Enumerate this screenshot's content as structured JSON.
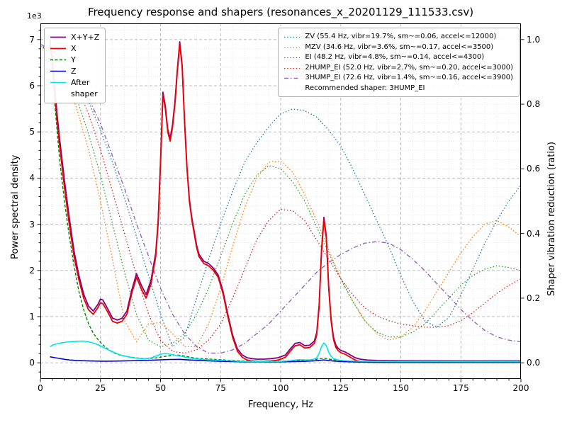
{
  "title": "Frequency response and shapers (resonances_x_20201129_111533.csv)",
  "axes": {
    "x": {
      "label": "Frequency, Hz",
      "min": 0,
      "max": 200,
      "tick_labels": [
        "0",
        "25",
        "50",
        "75",
        "100",
        "125",
        "150",
        "175",
        "200"
      ],
      "minor_step": 5
    },
    "y_left": {
      "label": "Power spectral density",
      "offset_text": "1e3",
      "min": 0,
      "max": 7000,
      "tick_labels": [
        "0",
        "1",
        "2",
        "3",
        "4",
        "5",
        "6",
        "7"
      ],
      "minor_step": 200
    },
    "y_right": {
      "label": "Shaper vibration reduction (ratio)",
      "min": 0,
      "max": 1,
      "tick_labels": [
        "0.0",
        "0.2",
        "0.4",
        "0.6",
        "0.8",
        "1.0"
      ]
    }
  },
  "chart_data": {
    "type": "line",
    "title": "Frequency response and shapers (resonances_x_20201129_111533.csv)",
    "xlabel": "Frequency, Hz",
    "ylabel_left": "Power spectral density",
    "ylabel_right": "Shaper vibration reduction (ratio)",
    "x_range": [
      0,
      200
    ],
    "y_left_range": [
      0,
      7000
    ],
    "y_right_range": [
      0,
      1.0
    ],
    "grid": "major+minor",
    "recommended_label": "Recommended shaper: 3HUMP_EI",
    "psd_series": [
      {
        "name": "psd_xyz",
        "label": "X+Y+Z",
        "color": "#800080",
        "style": "solid",
        "width": 1.8,
        "x": [
          4,
          5,
          6,
          7,
          8,
          10,
          12,
          14,
          16,
          18,
          20,
          22,
          24,
          25,
          26,
          28,
          30,
          32,
          34,
          36,
          38,
          40,
          42,
          44,
          46,
          48,
          49,
          50,
          51,
          52,
          53,
          54,
          55,
          56,
          57,
          58,
          59,
          60,
          61,
          62,
          63,
          64,
          65,
          66,
          68,
          70,
          72,
          74,
          76,
          78,
          80,
          82,
          84,
          86,
          88,
          90,
          93,
          96,
          99,
          102,
          104,
          106,
          108,
          110,
          112,
          114,
          115,
          116,
          117,
          118,
          119,
          120,
          121,
          122,
          123,
          124,
          125,
          127,
          129,
          131,
          133,
          136,
          140,
          150,
          160,
          180,
          200
        ],
        "y": [
          7000,
          6600,
          5950,
          5350,
          4850,
          3950,
          3150,
          2420,
          1900,
          1490,
          1230,
          1120,
          1270,
          1380,
          1360,
          1170,
          970,
          925,
          965,
          1120,
          1570,
          1930,
          1680,
          1480,
          1780,
          2380,
          3080,
          4380,
          5860,
          5560,
          5060,
          4860,
          5160,
          5660,
          6360,
          6950,
          6450,
          5250,
          4250,
          3550,
          3150,
          2850,
          2550,
          2350,
          2200,
          2150,
          2050,
          1900,
          1550,
          1050,
          600,
          300,
          170,
          110,
          90,
          80,
          80,
          90,
          110,
          170,
          300,
          420,
          440,
          370,
          380,
          470,
          650,
          1250,
          2450,
          3150,
          2750,
          1650,
          950,
          550,
          380,
          310,
          270,
          230,
          170,
          110,
          80,
          60,
          50,
          45,
          42,
          40,
          40
        ]
      },
      {
        "name": "psd_x",
        "label": "X",
        "color": "#ee0000",
        "style": "solid",
        "width": 1.8,
        "x": [
          4,
          5,
          6,
          7,
          8,
          10,
          12,
          14,
          16,
          18,
          20,
          22,
          24,
          25,
          26,
          28,
          30,
          32,
          34,
          36,
          38,
          40,
          42,
          44,
          46,
          48,
          49,
          50,
          51,
          52,
          53,
          54,
          55,
          56,
          57,
          58,
          59,
          60,
          61,
          62,
          63,
          64,
          65,
          66,
          68,
          70,
          72,
          74,
          76,
          78,
          80,
          82,
          84,
          86,
          88,
          90,
          93,
          96,
          99,
          102,
          104,
          106,
          108,
          110,
          112,
          114,
          115,
          116,
          117,
          118,
          119,
          120,
          121,
          122,
          123,
          124,
          125,
          127,
          129,
          131,
          133,
          136,
          140,
          150,
          160,
          180,
          200
        ],
        "y": [
          6900,
          6500,
          5800,
          5200,
          4700,
          3800,
          3000,
          2300,
          1800,
          1400,
          1150,
          1050,
          1200,
          1300,
          1280,
          1100,
          900,
          860,
          900,
          1050,
          1500,
          1850,
          1600,
          1400,
          1700,
          2300,
          3000,
          4300,
          5800,
          5500,
          5000,
          4800,
          5100,
          5600,
          6300,
          6900,
          6400,
          5200,
          4200,
          3500,
          3100,
          2800,
          2500,
          2300,
          2150,
          2100,
          2000,
          1850,
          1500,
          1000,
          550,
          250,
          120,
          60,
          40,
          30,
          30,
          40,
          60,
          120,
          250,
          370,
          390,
          320,
          330,
          420,
          600,
          1200,
          2400,
          3100,
          2700,
          1600,
          900,
          500,
          330,
          260,
          220,
          180,
          120,
          60,
          30,
          15,
          10,
          8,
          8,
          8,
          8
        ]
      },
      {
        "name": "psd_y",
        "label": "Y",
        "color": "#008000",
        "style": "dashed",
        "width": 1.4,
        "x": [
          4,
          5,
          6,
          7,
          8,
          10,
          12,
          14,
          16,
          18,
          20,
          22,
          24,
          26,
          28,
          30,
          32,
          34,
          36,
          38,
          40,
          44,
          48,
          52,
          54,
          56,
          58,
          60,
          62,
          64,
          66,
          70,
          74,
          78,
          82,
          86,
          90,
          95,
          100,
          105,
          110,
          114,
          116,
          118,
          120,
          124,
          128,
          132,
          136,
          140,
          150,
          160,
          180,
          200
        ],
        "y": [
          6600,
          6300,
          5600,
          5000,
          4400,
          3500,
          2750,
          2100,
          1550,
          1150,
          850,
          640,
          500,
          390,
          300,
          230,
          185,
          155,
          135,
          120,
          105,
          90,
          105,
          140,
          155,
          165,
          165,
          145,
          125,
          105,
          95,
          80,
          70,
          55,
          45,
          38,
          33,
          32,
          36,
          45,
          55,
          70,
          85,
          100,
          80,
          55,
          40,
          30,
          24,
          20,
          16,
          14,
          13,
          13
        ]
      },
      {
        "name": "psd_z",
        "label": "Z",
        "color": "#0000cc",
        "style": "solid",
        "width": 1.6,
        "x": [
          4,
          6,
          8,
          10,
          12,
          15,
          18,
          21,
          24,
          27,
          30,
          34,
          38,
          42,
          46,
          50,
          54,
          58,
          62,
          66,
          70,
          75,
          80,
          85,
          90,
          95,
          100,
          105,
          110,
          114,
          116,
          118,
          120,
          124,
          128,
          132,
          136,
          140,
          150,
          160,
          180,
          200
        ],
        "y": [
          130,
          110,
          95,
          75,
          62,
          50,
          44,
          40,
          37,
          35,
          36,
          40,
          45,
          50,
          56,
          64,
          72,
          75,
          62,
          50,
          42,
          33,
          26,
          21,
          18,
          17,
          20,
          26,
          33,
          42,
          52,
          62,
          48,
          30,
          22,
          17,
          14,
          12,
          10,
          9,
          9,
          9
        ]
      },
      {
        "name": "psd_after_shaper",
        "label": "After\nshaper",
        "color": "#00e5e5",
        "style": "solid",
        "width": 1.6,
        "x": [
          4,
          5,
          6,
          8,
          10,
          12,
          14,
          16,
          18,
          20,
          22,
          24,
          26,
          28,
          30,
          32,
          34,
          36,
          38,
          40,
          42,
          44,
          46,
          48,
          50,
          52,
          54,
          56,
          58,
          60,
          62,
          64,
          66,
          68,
          70,
          74,
          78,
          82,
          86,
          90,
          95,
          100,
          104,
          106,
          108,
          110,
          112,
          114,
          115,
          116,
          117,
          118,
          119,
          120,
          121,
          122,
          124,
          126,
          128,
          132,
          136,
          140,
          150,
          160,
          180,
          200
        ],
        "y": [
          350,
          380,
          400,
          425,
          440,
          455,
          462,
          468,
          470,
          455,
          430,
          390,
          340,
          290,
          240,
          195,
          160,
          135,
          115,
          100,
          92,
          90,
          105,
          145,
          185,
          200,
          185,
          165,
          150,
          125,
          105,
          90,
          78,
          70,
          64,
          55,
          45,
          35,
          28,
          24,
          24,
          30,
          45,
          60,
          68,
          64,
          62,
          80,
          110,
          200,
          350,
          430,
          370,
          230,
          140,
          90,
          60,
          48,
          42,
          36,
          32,
          30,
          27,
          26,
          25,
          25
        ]
      }
    ],
    "shaper_x": [
      0,
      5,
      10,
      15,
      20,
      25,
      30,
      35,
      40,
      45,
      50,
      55,
      60,
      65,
      70,
      75,
      80,
      85,
      90,
      95,
      100,
      105,
      110,
      115,
      120,
      125,
      130,
      135,
      140,
      145,
      150,
      155,
      160,
      165,
      170,
      175,
      180,
      185,
      190,
      195,
      200
    ],
    "shaper_series": [
      {
        "name": "zv",
        "label": "ZV (55.4 Hz, vibr=19.7%, sm~=0.06, accel<=12000)",
        "color": "#1f77b4",
        "style": "dotted",
        "width": 1.3,
        "values": [
          0.98,
          0.965,
          0.93,
          0.88,
          0.81,
          0.72,
          0.62,
          0.51,
          0.39,
          0.27,
          0.15,
          0.05,
          0.08,
          0.2,
          0.32,
          0.43,
          0.53,
          0.62,
          0.68,
          0.73,
          0.77,
          0.785,
          0.78,
          0.76,
          0.72,
          0.67,
          0.6,
          0.52,
          0.44,
          0.36,
          0.27,
          0.19,
          0.13,
          0.11,
          0.14,
          0.21,
          0.29,
          0.37,
          0.44,
          0.5,
          0.55
        ]
      },
      {
        "name": "mzv",
        "label": "MZV (34.6 Hz, vibr=3.6%, sm~=0.17, accel<=3500)",
        "color": "#ff7f0e",
        "style": "dotted",
        "width": 1.3,
        "values": [
          0.98,
          0.95,
          0.89,
          0.79,
          0.66,
          0.5,
          0.32,
          0.13,
          0.065,
          0.12,
          0.125,
          0.09,
          0.05,
          0.05,
          0.12,
          0.23,
          0.36,
          0.48,
          0.57,
          0.62,
          0.625,
          0.59,
          0.52,
          0.44,
          0.35,
          0.26,
          0.19,
          0.13,
          0.09,
          0.07,
          0.08,
          0.11,
          0.16,
          0.22,
          0.28,
          0.34,
          0.39,
          0.43,
          0.44,
          0.42,
          0.39
        ]
      },
      {
        "name": "ei",
        "label": "EI (48.2 Hz, vibr=4.8%, sm~=0.14, accel<=4300)",
        "color": "#2ca02c",
        "style": "dotted",
        "width": 1.3,
        "values": [
          0.98,
          0.955,
          0.9,
          0.82,
          0.71,
          0.58,
          0.43,
          0.28,
          0.15,
          0.07,
          0.05,
          0.06,
          0.09,
          0.15,
          0.23,
          0.33,
          0.43,
          0.52,
          0.58,
          0.61,
          0.6,
          0.56,
          0.5,
          0.42,
          0.34,
          0.26,
          0.19,
          0.13,
          0.095,
          0.08,
          0.08,
          0.095,
          0.12,
          0.16,
          0.2,
          0.24,
          0.27,
          0.29,
          0.3,
          0.295,
          0.285
        ]
      },
      {
        "name": "2hump_ei",
        "label": "2HUMP_EI (52.0 Hz, vibr=2.7%, sm~=0.20, accel<=3000)",
        "color": "#d62728",
        "style": "dotted",
        "width": 1.3,
        "values": [
          0.985,
          0.965,
          0.925,
          0.86,
          0.77,
          0.66,
          0.53,
          0.4,
          0.27,
          0.15,
          0.07,
          0.035,
          0.03,
          0.04,
          0.07,
          0.12,
          0.2,
          0.29,
          0.38,
          0.44,
          0.475,
          0.47,
          0.44,
          0.38,
          0.32,
          0.26,
          0.21,
          0.17,
          0.145,
          0.13,
          0.12,
          0.115,
          0.11,
          0.11,
          0.115,
          0.13,
          0.155,
          0.185,
          0.215,
          0.24,
          0.26
        ]
      },
      {
        "name": "3hump_ei",
        "label": "3HUMP_EI (72.6 Hz, vibr=1.4%, sm~=0.16, accel<=3900)",
        "color": "#9467bd",
        "style": "dashdot",
        "width": 1.4,
        "values": [
          0.985,
          0.97,
          0.94,
          0.89,
          0.82,
          0.74,
          0.64,
          0.54,
          0.43,
          0.33,
          0.23,
          0.15,
          0.09,
          0.05,
          0.03,
          0.03,
          0.04,
          0.06,
          0.09,
          0.12,
          0.16,
          0.2,
          0.24,
          0.28,
          0.31,
          0.335,
          0.355,
          0.37,
          0.375,
          0.37,
          0.35,
          0.32,
          0.285,
          0.245,
          0.205,
          0.165,
          0.13,
          0.1,
          0.08,
          0.07,
          0.065
        ]
      }
    ]
  }
}
